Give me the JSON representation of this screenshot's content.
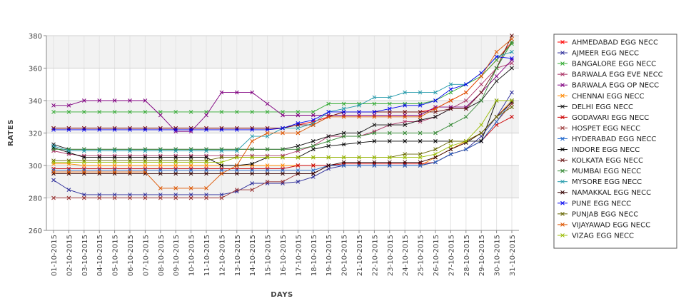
{
  "chart_data": {
    "type": "line",
    "xlabel": "DAYS",
    "ylabel": "RATES",
    "ylim": [
      260,
      380
    ],
    "yticks": [
      260,
      280,
      300,
      320,
      340,
      360,
      380
    ],
    "grid": true,
    "legend_position": "right",
    "categories": [
      "01-10-2015",
      "02-10-2015",
      "03-10-2015",
      "04-10-2015",
      "05-10-2015",
      "06-10-2015",
      "07-10-2015",
      "08-10-2015",
      "09-10-2015",
      "10-10-2015",
      "11-10-2015",
      "12-10-2015",
      "13-10-2015",
      "14-10-2015",
      "15-10-2015",
      "16-10-2015",
      "17-10-2015",
      "18-10-2015",
      "19-10-2015",
      "20-10-2015",
      "21-10-2015",
      "22-10-2015",
      "23-10-2015",
      "24-10-2015",
      "25-10-2015",
      "26-10-2015",
      "27-10-2015",
      "28-10-2015",
      "29-10-2015",
      "30-10-2015",
      "31-10-2015"
    ],
    "series": [
      {
        "name": "AHMEDABAD EGG NECC",
        "color": "#ff0000",
        "values": [
          323,
          323,
          323,
          323,
          323,
          323,
          323,
          323,
          323,
          323,
          323,
          323,
          323,
          323,
          323,
          323,
          325,
          327,
          330,
          333,
          333,
          333,
          333,
          333,
          333,
          335,
          340,
          345,
          355,
          365,
          376
        ]
      },
      {
        "name": "AJMEER EGG NECC",
        "color": "#2b2b99",
        "values": [
          291,
          285,
          282,
          282,
          282,
          282,
          282,
          282,
          282,
          282,
          282,
          282,
          284,
          289,
          289,
          289,
          290,
          293,
          298,
          300,
          300,
          300,
          300,
          300,
          300,
          302,
          307,
          310,
          318,
          330,
          345
        ]
      },
      {
        "name": "BANGALORE EGG NECC",
        "color": "#33aa33",
        "values": [
          333,
          333,
          333,
          333,
          333,
          333,
          333,
          333,
          333,
          333,
          333,
          333,
          333,
          333,
          333,
          333,
          333,
          333,
          338,
          338,
          338,
          338,
          338,
          338,
          338,
          340,
          345,
          350,
          355,
          365,
          375
        ]
      },
      {
        "name": "BARWALA EGG EVE NECC",
        "color": "#aa3366",
        "values": [
          309,
          307,
          306,
          306,
          306,
          306,
          306,
          306,
          306,
          306,
          306,
          306,
          306,
          306,
          306,
          306,
          309,
          312,
          318,
          318,
          318,
          321,
          325,
          327,
          327,
          330,
          335,
          340,
          350,
          360,
          363
        ]
      },
      {
        "name": "BARWALA EGG OP NECC",
        "color": "#800080",
        "values": [
          337,
          337,
          340,
          340,
          340,
          340,
          340,
          331,
          321,
          321,
          331,
          345,
          345,
          345,
          338,
          331,
          331,
          331,
          331,
          331,
          331,
          331,
          331,
          331,
          331,
          336,
          336,
          336,
          345,
          355,
          365
        ]
      },
      {
        "name": "CHENNAI EGG NECC",
        "color": "#ff8800",
        "values": [
          301,
          301,
          300,
          300,
          300,
          300,
          300,
          300,
          300,
          300,
          300,
          300,
          300,
          300,
          300,
          300,
          300,
          300,
          300,
          300,
          300,
          300,
          300,
          300,
          300,
          305,
          310,
          315,
          320,
          330,
          340
        ]
      },
      {
        "name": "DELHI EGG NECC",
        "color": "#111111",
        "values": [
          313,
          310,
          310,
          310,
          310,
          310,
          310,
          310,
          310,
          310,
          310,
          310,
          310,
          310,
          310,
          310,
          312,
          315,
          318,
          320,
          320,
          325,
          325,
          325,
          328,
          330,
          335,
          335,
          340,
          352,
          360
        ]
      },
      {
        "name": "GODAVARI EGG NECC",
        "color": "#cc0000",
        "values": [
          298,
          298,
          298,
          298,
          298,
          298,
          298,
          298,
          298,
          298,
          298,
          298,
          298,
          298,
          298,
          298,
          300,
          300,
          300,
          301,
          301,
          301,
          301,
          301,
          301,
          302,
          307,
          310,
          315,
          325,
          330
        ]
      },
      {
        "name": "HOSPET EGG NECC",
        "color": "#993333",
        "values": [
          280,
          280,
          280,
          280,
          280,
          280,
          280,
          280,
          280,
          280,
          280,
          280,
          285,
          285,
          290,
          290,
          295,
          295,
          300,
          300,
          300,
          300,
          300,
          300,
          300,
          302,
          307,
          310,
          315,
          327,
          338
        ]
      },
      {
        "name": "HYDERABAD EGG NECC",
        "color": "#1e66cc",
        "values": [
          297,
          297,
          297,
          297,
          297,
          297,
          297,
          297,
          297,
          297,
          297,
          297,
          297,
          297,
          297,
          297,
          297,
          297,
          300,
          300,
          300,
          300,
          300,
          300,
          300,
          302,
          307,
          310,
          315,
          327,
          340
        ]
      },
      {
        "name": "INDORE EGG NECC",
        "color": "#000000",
        "values": [
          311,
          308,
          305,
          305,
          305,
          305,
          305,
          305,
          305,
          305,
          305,
          300,
          300,
          301,
          305,
          305,
          305,
          310,
          312,
          313,
          314,
          315,
          315,
          315,
          315,
          315,
          315,
          315,
          315,
          340,
          340
        ]
      },
      {
        "name": "KOLKATA EGG NECC",
        "color": "#661111",
        "values": [
          323,
          323,
          323,
          323,
          323,
          323,
          323,
          323,
          323,
          323,
          323,
          323,
          323,
          323,
          323,
          323,
          325,
          325,
          330,
          333,
          333,
          333,
          333,
          333,
          333,
          333,
          335,
          335,
          345,
          360,
          380
        ]
      },
      {
        "name": "MUMBAI EGG NECC",
        "color": "#338833",
        "values": [
          310,
          310,
          310,
          310,
          310,
          310,
          310,
          310,
          310,
          310,
          310,
          310,
          310,
          310,
          310,
          310,
          310,
          312,
          315,
          318,
          318,
          320,
          320,
          320,
          320,
          320,
          325,
          330,
          340,
          360,
          376
        ]
      },
      {
        "name": "MYSORE EGG NECC",
        "color": "#2299aa",
        "values": [
          312,
          309,
          309,
          309,
          309,
          309,
          309,
          309,
          309,
          309,
          309,
          309,
          309,
          318,
          318,
          323,
          323,
          326,
          333,
          335,
          337,
          342,
          342,
          345,
          345,
          345,
          350,
          350,
          357,
          367,
          370
        ]
      },
      {
        "name": "NAMAKKAL EGG NECC",
        "color": "#330000",
        "values": [
          295,
          295,
          295,
          295,
          295,
          295,
          295,
          295,
          295,
          295,
          295,
          295,
          295,
          295,
          295,
          295,
          295,
          295,
          300,
          302,
          302,
          302,
          302,
          302,
          302,
          305,
          310,
          314,
          320,
          330,
          339
        ]
      },
      {
        "name": "PUNE EGG NECC",
        "color": "#0000ee",
        "values": [
          322,
          322,
          322,
          322,
          322,
          322,
          322,
          322,
          322,
          322,
          322,
          322,
          322,
          322,
          322,
          323,
          326,
          328,
          333,
          333,
          333,
          333,
          335,
          337,
          337,
          340,
          347,
          350,
          357,
          367,
          366
        ]
      },
      {
        "name": "PUNJAB EGG NECC",
        "color": "#666600",
        "values": [
          303,
          303,
          303,
          303,
          303,
          303,
          303,
          303,
          303,
          303,
          303,
          305,
          305,
          305,
          305,
          305,
          305,
          305,
          305,
          305,
          305,
          305,
          305,
          307,
          307,
          310,
          315,
          315,
          320,
          330,
          336
        ]
      },
      {
        "name": "VIJAYAWAD EGG NECC",
        "color": "#dd5500",
        "values": [
          296,
          296,
          296,
          296,
          296,
          296,
          296,
          286,
          286,
          286,
          286,
          295,
          300,
          315,
          320,
          320,
          320,
          325,
          330,
          330,
          330,
          330,
          330,
          330,
          330,
          335,
          340,
          345,
          355,
          370,
          378
        ]
      },
      {
        "name": "VIZAG EGG NECC",
        "color": "#99bb00",
        "values": [
          302,
          302,
          302,
          302,
          302,
          302,
          302,
          302,
          302,
          302,
          302,
          302,
          305,
          305,
          305,
          305,
          305,
          305,
          305,
          305,
          305,
          305,
          305,
          305,
          305,
          307,
          312,
          315,
          325,
          340,
          340
        ]
      }
    ]
  }
}
